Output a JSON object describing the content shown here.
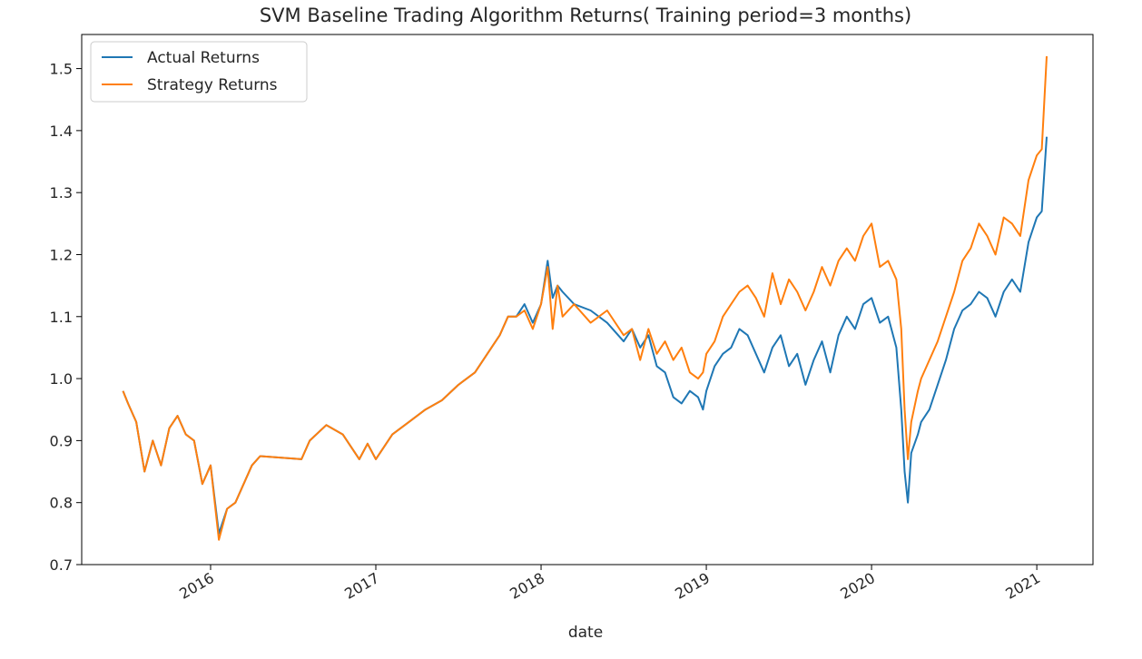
{
  "chart_data": {
    "type": "line",
    "title": "SVM Baseline Trading Algorithm Returns( Training period=3 months)",
    "xlabel": "date",
    "ylabel": "",
    "xlim": [
      2015.22,
      2021.34
    ],
    "ylim": [
      0.7,
      1.555
    ],
    "y_ticks": [
      0.7,
      0.8,
      0.9,
      1.0,
      1.1,
      1.2,
      1.3,
      1.4,
      1.5
    ],
    "y_tick_labels": [
      "0.7",
      "0.8",
      "0.9",
      "1.0",
      "1.1",
      "1.2",
      "1.3",
      "1.4",
      "1.5"
    ],
    "x_ticks": [
      2016,
      2017,
      2018,
      2019,
      2020,
      2021
    ],
    "x_tick_labels": [
      "2016",
      "2017",
      "2018",
      "2019",
      "2020",
      "2021"
    ],
    "grid": false,
    "legend_position": "top-left",
    "series": [
      {
        "name": "Actual Returns",
        "color": "#1f77b4",
        "x": [
          2015.47,
          2015.5,
          2015.55,
          2015.6,
          2015.65,
          2015.7,
          2015.75,
          2015.8,
          2015.85,
          2015.9,
          2015.95,
          2016.0,
          2016.05,
          2016.1,
          2016.15,
          2016.2,
          2016.25,
          2016.3,
          2016.55,
          2016.6,
          2016.7,
          2016.8,
          2016.9,
          2016.95,
          2017.0,
          2017.1,
          2017.2,
          2017.3,
          2017.4,
          2017.5,
          2017.6,
          2017.7,
          2017.75,
          2017.8,
          2017.85,
          2017.9,
          2017.95,
          2018.0,
          2018.04,
          2018.07,
          2018.1,
          2018.13,
          2018.2,
          2018.3,
          2018.4,
          2018.5,
          2018.55,
          2018.6,
          2018.65,
          2018.7,
          2018.75,
          2018.8,
          2018.85,
          2018.9,
          2018.95,
          2018.98,
          2019.0,
          2019.05,
          2019.1,
          2019.15,
          2019.2,
          2019.25,
          2019.3,
          2019.35,
          2019.4,
          2019.45,
          2019.5,
          2019.55,
          2019.6,
          2019.65,
          2019.7,
          2019.75,
          2019.8,
          2019.85,
          2019.9,
          2019.95,
          2020.0,
          2020.05,
          2020.1,
          2020.15,
          2020.18,
          2020.2,
          2020.22,
          2020.24,
          2020.28,
          2020.3,
          2020.35,
          2020.4,
          2020.45,
          2020.5,
          2020.55,
          2020.6,
          2020.65,
          2020.7,
          2020.75,
          2020.8,
          2020.85,
          2020.9,
          2020.95,
          2021.0,
          2021.03,
          2021.06
        ],
        "y": [
          0.98,
          0.96,
          0.93,
          0.85,
          0.9,
          0.86,
          0.92,
          0.94,
          0.91,
          0.9,
          0.83,
          0.86,
          0.75,
          0.79,
          0.8,
          0.83,
          0.86,
          0.875,
          0.87,
          0.9,
          0.925,
          0.91,
          0.87,
          0.895,
          0.87,
          0.91,
          0.93,
          0.95,
          0.965,
          0.99,
          1.01,
          1.05,
          1.07,
          1.1,
          1.1,
          1.12,
          1.09,
          1.12,
          1.19,
          1.13,
          1.15,
          1.14,
          1.12,
          1.11,
          1.09,
          1.06,
          1.08,
          1.05,
          1.07,
          1.02,
          1.01,
          0.97,
          0.96,
          0.98,
          0.97,
          0.95,
          0.98,
          1.02,
          1.04,
          1.05,
          1.08,
          1.07,
          1.04,
          1.01,
          1.05,
          1.07,
          1.02,
          1.04,
          0.99,
          1.03,
          1.06,
          1.01,
          1.07,
          1.1,
          1.08,
          1.12,
          1.13,
          1.09,
          1.1,
          1.05,
          0.95,
          0.85,
          0.8,
          0.88,
          0.91,
          0.93,
          0.95,
          0.99,
          1.03,
          1.08,
          1.11,
          1.12,
          1.14,
          1.13,
          1.1,
          1.14,
          1.16,
          1.14,
          1.22,
          1.26,
          1.27,
          1.39
        ]
      },
      {
        "name": "Strategy Returns",
        "color": "#ff7f0e",
        "x": [
          2015.47,
          2015.5,
          2015.55,
          2015.6,
          2015.65,
          2015.7,
          2015.75,
          2015.8,
          2015.85,
          2015.9,
          2015.95,
          2016.0,
          2016.05,
          2016.1,
          2016.15,
          2016.2,
          2016.25,
          2016.3,
          2016.55,
          2016.6,
          2016.7,
          2016.8,
          2016.9,
          2016.95,
          2017.0,
          2017.1,
          2017.2,
          2017.3,
          2017.4,
          2017.5,
          2017.6,
          2017.7,
          2017.75,
          2017.8,
          2017.85,
          2017.9,
          2017.95,
          2018.0,
          2018.04,
          2018.07,
          2018.1,
          2018.13,
          2018.2,
          2018.3,
          2018.4,
          2018.5,
          2018.55,
          2018.6,
          2018.65,
          2018.7,
          2018.75,
          2018.8,
          2018.85,
          2018.9,
          2018.95,
          2018.98,
          2019.0,
          2019.05,
          2019.1,
          2019.15,
          2019.2,
          2019.25,
          2019.3,
          2019.35,
          2019.4,
          2019.45,
          2019.5,
          2019.55,
          2019.6,
          2019.65,
          2019.7,
          2019.75,
          2019.8,
          2019.85,
          2019.9,
          2019.95,
          2020.0,
          2020.05,
          2020.1,
          2020.15,
          2020.18,
          2020.2,
          2020.22,
          2020.24,
          2020.28,
          2020.3,
          2020.35,
          2020.4,
          2020.45,
          2020.5,
          2020.55,
          2020.6,
          2020.65,
          2020.7,
          2020.75,
          2020.8,
          2020.85,
          2020.9,
          2020.95,
          2021.0,
          2021.03,
          2021.06
        ],
        "y": [
          0.98,
          0.96,
          0.93,
          0.85,
          0.9,
          0.86,
          0.92,
          0.94,
          0.91,
          0.9,
          0.83,
          0.86,
          0.74,
          0.79,
          0.8,
          0.83,
          0.86,
          0.875,
          0.87,
          0.9,
          0.925,
          0.91,
          0.87,
          0.895,
          0.87,
          0.91,
          0.93,
          0.95,
          0.965,
          0.99,
          1.01,
          1.05,
          1.07,
          1.1,
          1.1,
          1.11,
          1.08,
          1.12,
          1.18,
          1.08,
          1.15,
          1.1,
          1.12,
          1.09,
          1.11,
          1.07,
          1.08,
          1.03,
          1.08,
          1.04,
          1.06,
          1.03,
          1.05,
          1.01,
          1.0,
          1.01,
          1.04,
          1.06,
          1.1,
          1.12,
          1.14,
          1.15,
          1.13,
          1.1,
          1.17,
          1.12,
          1.16,
          1.14,
          1.11,
          1.14,
          1.18,
          1.15,
          1.19,
          1.21,
          1.19,
          1.23,
          1.25,
          1.18,
          1.19,
          1.16,
          1.08,
          0.95,
          0.87,
          0.93,
          0.98,
          1.0,
          1.03,
          1.06,
          1.1,
          1.14,
          1.19,
          1.21,
          1.25,
          1.23,
          1.2,
          1.26,
          1.25,
          1.23,
          1.32,
          1.36,
          1.37,
          1.52
        ]
      }
    ]
  }
}
